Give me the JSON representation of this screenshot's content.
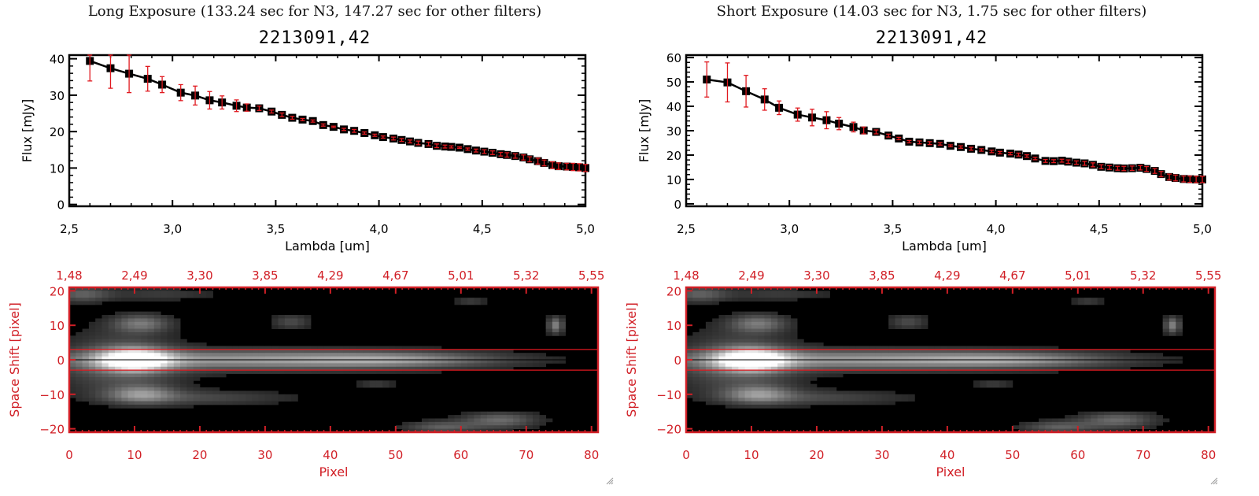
{
  "chart_data": [
    {
      "type": "line",
      "panel": "left",
      "exposure_title": "Long Exposure (133.24 sec for N3, 147.27 sec for other filters)",
      "title": "2213091,42",
      "xlabel": "Lambda [um]",
      "ylabel": "Flux [mJy]",
      "xlim": [
        2.5,
        5.0
      ],
      "ylim": [
        -0.5,
        41
      ],
      "xticks": [
        "2,5",
        "3,0",
        "3,5",
        "4,0",
        "4,5",
        "5,0"
      ],
      "xtick_values": [
        2.5,
        3.0,
        3.5,
        4.0,
        4.5,
        5.0
      ],
      "yticks": [
        "0",
        "10",
        "20",
        "30",
        "40"
      ],
      "ytick_values": [
        0,
        10,
        20,
        30,
        40
      ],
      "marker_color": "#000000",
      "errorbar_color": "#e0191f",
      "x": [
        2.6,
        2.7,
        2.79,
        2.88,
        2.95,
        3.04,
        3.11,
        3.18,
        3.24,
        3.31,
        3.36,
        3.42,
        3.48,
        3.53,
        3.58,
        3.63,
        3.68,
        3.73,
        3.78,
        3.83,
        3.88,
        3.93,
        3.98,
        4.02,
        4.07,
        4.11,
        4.15,
        4.19,
        4.24,
        4.28,
        4.32,
        4.35,
        4.39,
        4.43,
        4.47,
        4.51,
        4.55,
        4.59,
        4.62,
        4.66,
        4.7,
        4.73,
        4.77,
        4.8,
        4.84,
        4.87,
        4.91,
        4.94,
        4.97,
        5.0
      ],
      "y": [
        39.4,
        37.4,
        35.9,
        34.5,
        32.9,
        30.7,
        29.9,
        28.6,
        28.0,
        27.1,
        26.6,
        26.4,
        25.5,
        24.6,
        23.8,
        23.3,
        22.9,
        21.8,
        21.3,
        20.6,
        20.2,
        19.6,
        19.0,
        18.5,
        18.1,
        17.7,
        17.3,
        16.9,
        16.6,
        16.1,
        15.9,
        15.8,
        15.6,
        15.2,
        14.8,
        14.5,
        14.2,
        13.8,
        13.6,
        13.3,
        12.9,
        12.4,
        11.9,
        11.4,
        10.8,
        10.5,
        10.4,
        10.3,
        10.2,
        10.0
      ],
      "yerr": [
        5.5,
        5.5,
        5.2,
        3.4,
        2.2,
        2.2,
        2.6,
        2.4,
        1.8,
        1.6,
        1.0,
        0.6,
        0.4,
        0.5,
        0.4,
        0.3,
        0.3,
        0.3,
        0.2,
        0.3,
        0.4,
        0.3,
        0.3,
        0.3,
        0.4,
        0.4,
        0.4,
        0.5,
        0.5,
        0.5,
        0.4,
        0.3,
        0.2,
        0.3,
        0.4,
        0.5,
        0.5,
        0.5,
        0.6,
        0.6,
        0.7,
        0.7,
        0.8,
        0.8,
        0.9,
        0.9,
        0.9,
        1.0,
        1.0,
        1.0
      ]
    },
    {
      "type": "line",
      "panel": "right",
      "exposure_title": "Short Exposure (14.03 sec for N3, 1.75 sec for other filters)",
      "title": "2213091,42",
      "xlabel": "Lambda [um]",
      "ylabel": "Flux [mJy]",
      "xlim": [
        2.5,
        5.0
      ],
      "ylim": [
        -1,
        61
      ],
      "xticks": [
        "2,5",
        "3,0",
        "3,5",
        "4,0",
        "4,5",
        "5,0"
      ],
      "xtick_values": [
        2.5,
        3.0,
        3.5,
        4.0,
        4.5,
        5.0
      ],
      "yticks": [
        "0",
        "10",
        "20",
        "30",
        "40",
        "50",
        "60"
      ],
      "ytick_values": [
        0,
        10,
        20,
        30,
        40,
        50,
        60
      ],
      "marker_color": "#000000",
      "errorbar_color": "#e0191f",
      "x": [
        2.6,
        2.7,
        2.79,
        2.88,
        2.95,
        3.04,
        3.11,
        3.18,
        3.24,
        3.31,
        3.36,
        3.42,
        3.48,
        3.53,
        3.58,
        3.63,
        3.68,
        3.73,
        3.78,
        3.83,
        3.88,
        3.93,
        3.98,
        4.02,
        4.07,
        4.11,
        4.15,
        4.19,
        4.24,
        4.28,
        4.32,
        4.35,
        4.39,
        4.43,
        4.47,
        4.51,
        4.55,
        4.59,
        4.62,
        4.66,
        4.7,
        4.73,
        4.77,
        4.8,
        4.84,
        4.87,
        4.91,
        4.94,
        4.97,
        5.0
      ],
      "y": [
        51.0,
        49.8,
        46.2,
        42.8,
        39.4,
        36.6,
        35.4,
        34.3,
        32.9,
        31.5,
        30.1,
        29.5,
        28.0,
        26.8,
        25.5,
        25.2,
        24.9,
        24.6,
        23.8,
        23.3,
        22.6,
        22.1,
        21.5,
        21.0,
        20.6,
        20.2,
        19.6,
        18.6,
        17.6,
        17.5,
        17.7,
        17.3,
        16.9,
        16.6,
        16.0,
        15.2,
        14.9,
        14.6,
        14.5,
        14.6,
        14.8,
        14.3,
        13.5,
        12.2,
        11.0,
        10.6,
        10.2,
        10.1,
        10.0,
        10.0
      ],
      "yerr": [
        7.2,
        8.0,
        6.5,
        4.4,
        2.8,
        2.7,
        3.4,
        3.5,
        2.5,
        2.0,
        1.4,
        0.8,
        0.6,
        0.5,
        0.5,
        0.6,
        0.6,
        0.5,
        0.4,
        0.5,
        0.6,
        0.5,
        0.5,
        0.5,
        0.5,
        0.6,
        0.5,
        0.5,
        0.6,
        0.6,
        0.6,
        0.7,
        0.7,
        0.8,
        0.8,
        0.8,
        0.8,
        0.8,
        0.9,
        0.9,
        0.9,
        1.0,
        1.0,
        1.1,
        1.2,
        1.2,
        1.2,
        1.3,
        1.3,
        1.3
      ]
    },
    {
      "type": "heatmap",
      "panel": "left",
      "xlabel": "Pixel",
      "ylabel": "Space Shift [pixel]",
      "xlim": [
        0,
        81
      ],
      "ylim": [
        -21,
        21
      ],
      "xticks": [
        "0",
        "10",
        "20",
        "30",
        "40",
        "50",
        "60",
        "70",
        "80"
      ],
      "xtick_values": [
        0,
        10,
        20,
        30,
        40,
        50,
        60,
        70,
        80
      ],
      "yticks": [
        "-20",
        "-10",
        "0",
        "10",
        "20"
      ],
      "ytick_values": [
        -20,
        -10,
        0,
        10,
        20
      ],
      "top_axis_ticks": [
        "1,48",
        "2,49",
        "3,30",
        "3,85",
        "4,29",
        "4,67",
        "5,01",
        "5,32",
        "5,55"
      ],
      "aperture_lines": [
        -3,
        3
      ],
      "center_line": 0,
      "axis_color": "#d11f26",
      "aperture_color": "#e0191f"
    },
    {
      "type": "heatmap",
      "panel": "right",
      "xlabel": "Pixel",
      "ylabel": "Space Shift [pixel]",
      "xlim": [
        0,
        81
      ],
      "ylim": [
        -21,
        21
      ],
      "xticks": [
        "0",
        "10",
        "20",
        "30",
        "40",
        "50",
        "60",
        "70",
        "80"
      ],
      "xtick_values": [
        0,
        10,
        20,
        30,
        40,
        50,
        60,
        70,
        80
      ],
      "yticks": [
        "-20",
        "-10",
        "0",
        "10",
        "20"
      ],
      "ytick_values": [
        -20,
        -10,
        0,
        10,
        20
      ],
      "top_axis_ticks": [
        "1,48",
        "2,49",
        "3,30",
        "3,85",
        "4,29",
        "4,67",
        "5,01",
        "5,32",
        "5,55"
      ],
      "aperture_lines": [
        -3,
        3
      ],
      "center_line": 0,
      "axis_color": "#d11f26",
      "aperture_color": "#e0191f"
    }
  ]
}
